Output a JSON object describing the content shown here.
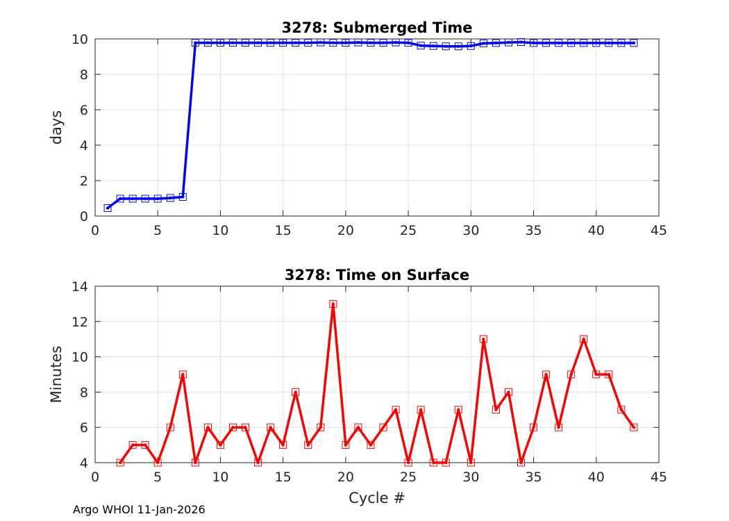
{
  "footer": "Argo WHOI 11-Jan-2026",
  "chart_data": [
    {
      "type": "line",
      "title": "3278: Submerged Time",
      "xlabel": "",
      "ylabel": "days",
      "xlim": [
        0,
        45
      ],
      "ylim": [
        0,
        10
      ],
      "xticks": [
        0,
        5,
        10,
        15,
        20,
        25,
        30,
        35,
        40,
        45
      ],
      "yticks": [
        0,
        2,
        4,
        6,
        8,
        10
      ],
      "grid": true,
      "color": "#0000ff",
      "marker": "square",
      "series": [
        {
          "name": "Submerged Time",
          "x": [
            1,
            2,
            3,
            4,
            5,
            6,
            7,
            8,
            9,
            10,
            11,
            12,
            13,
            14,
            15,
            16,
            17,
            18,
            19,
            20,
            21,
            22,
            23,
            24,
            25,
            26,
            27,
            28,
            29,
            30,
            31,
            32,
            33,
            34,
            35,
            36,
            37,
            38,
            39,
            40,
            41,
            42,
            43
          ],
          "y": [
            0.45,
            0.98,
            0.98,
            0.98,
            0.98,
            1.02,
            1.08,
            9.78,
            9.78,
            9.78,
            9.78,
            9.78,
            9.78,
            9.78,
            9.78,
            9.78,
            9.78,
            9.8,
            9.78,
            9.78,
            9.8,
            9.78,
            9.78,
            9.8,
            9.78,
            9.62,
            9.6,
            9.58,
            9.58,
            9.6,
            9.75,
            9.77,
            9.8,
            9.82,
            9.77,
            9.77,
            9.77,
            9.77,
            9.77,
            9.77,
            9.77,
            9.77,
            9.77
          ]
        }
      ]
    },
    {
      "type": "line",
      "title": "3278: Time on Surface",
      "xlabel": "Cycle #",
      "ylabel": "Minutes",
      "xlim": [
        0,
        45
      ],
      "ylim": [
        4,
        14
      ],
      "xticks": [
        0,
        5,
        10,
        15,
        20,
        25,
        30,
        35,
        40,
        45
      ],
      "yticks": [
        4,
        6,
        8,
        10,
        12,
        14
      ],
      "grid": true,
      "color": "#ff0000",
      "marker": "square",
      "series": [
        {
          "name": "Time on Surface",
          "x": [
            2,
            3,
            4,
            5,
            6,
            7,
            8,
            9,
            10,
            11,
            12,
            13,
            14,
            15,
            16,
            17,
            18,
            19,
            20,
            21,
            22,
            23,
            24,
            25,
            26,
            27,
            28,
            29,
            30,
            31,
            32,
            33,
            34,
            35,
            36,
            37,
            38,
            39,
            40,
            41,
            42,
            43
          ],
          "y": [
            4,
            5,
            5,
            4,
            6,
            9,
            4,
            6,
            5,
            6,
            6,
            4,
            6,
            5,
            8,
            5,
            6,
            13,
            5,
            6,
            5,
            6,
            7,
            4,
            7,
            4,
            4,
            7,
            4,
            11,
            7,
            8,
            4,
            6,
            9,
            6,
            9,
            11,
            9,
            9,
            7,
            6
          ]
        }
      ]
    }
  ]
}
